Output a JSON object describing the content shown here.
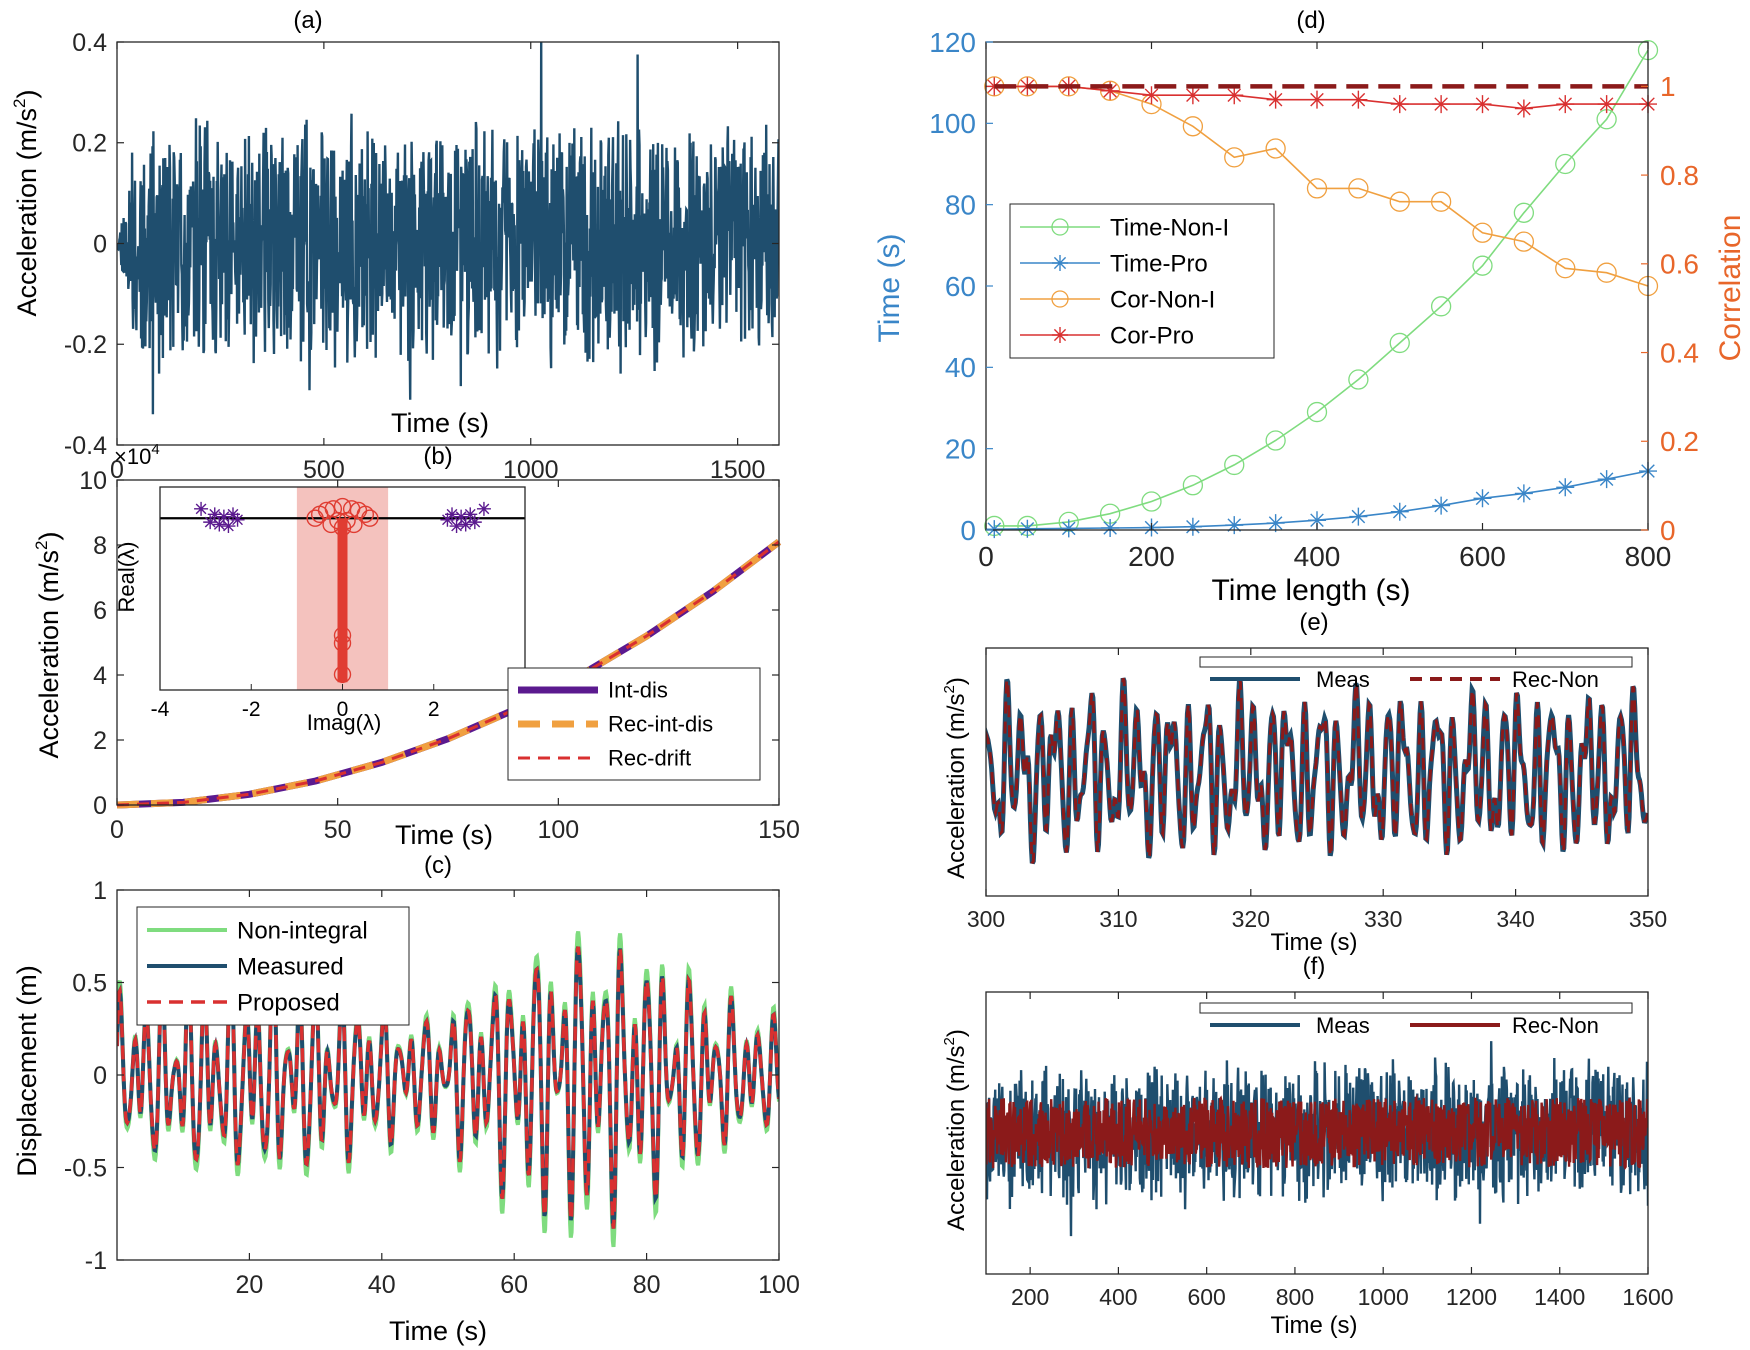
{
  "colors": {
    "navy": "#1f4e6e",
    "green": "#7fdc7f",
    "red": "#d93030",
    "darkred": "#8b1a1a",
    "purple": "#5b1a8f",
    "orange": "#f0a040",
    "blue": "#3a86c8",
    "orange_axis": "#e8662a",
    "inset_fill": "#f4c2be",
    "inset_red": "#e03c32",
    "black": "#000000"
  },
  "chart_data": [
    {
      "id": "a",
      "type": "line",
      "title": "(a)",
      "xlabel": "Time (s)",
      "ylabel": "Acceleration (m/s",
      "ylabel_sup": "2",
      "ylabel_close": ")",
      "xlim": [
        0,
        1600
      ],
      "ylim": [
        -0.4,
        0.4
      ],
      "xticks": [
        0,
        500,
        1000,
        1500
      ],
      "xtick_labels": [
        "0",
        "500",
        "1000",
        "1500"
      ],
      "yticks": [
        -0.4,
        -0.2,
        0,
        0.2,
        0.4
      ],
      "ytick_labels": [
        "-0.4",
        "-0.2",
        "0",
        "0.2",
        "0.4"
      ],
      "series": [
        {
          "name": "acceleration",
          "color": "navy",
          "kind": "noise",
          "x_range": [
            0,
            1600
          ],
          "points": 1400,
          "amplitude": 0.26,
          "ramp_end": 40,
          "seed": 11
        }
      ]
    },
    {
      "id": "b",
      "type": "line",
      "title": "(b)",
      "exponent_label": "×10",
      "exponent_sup": "4",
      "xlabel": "Time (s)",
      "ylabel": "Acceleration (m/s",
      "ylabel_sup": "2",
      "ylabel_close": ")",
      "xlim": [
        0,
        150
      ],
      "ylim": [
        0,
        10
      ],
      "xticks": [
        0,
        50,
        100,
        150
      ],
      "xtick_labels": [
        "0",
        "50",
        "100",
        "150"
      ],
      "yticks": [
        0,
        2,
        4,
        6,
        8,
        10
      ],
      "ytick_labels": [
        "0",
        "2",
        "4",
        "6",
        "8",
        "10"
      ],
      "series": [
        {
          "name": "Int-dis",
          "color": "purple",
          "style": "solid",
          "x": [
            0,
            15,
            30,
            45,
            60,
            75,
            90,
            105,
            120,
            135,
            150
          ],
          "y": [
            0,
            0.08,
            0.33,
            0.74,
            1.31,
            2.04,
            2.93,
            3.99,
            5.2,
            6.57,
            8.1
          ]
        },
        {
          "name": "Rec-int-dis",
          "color": "orange",
          "style": "dashed-thick",
          "x": [
            0,
            15,
            30,
            45,
            60,
            75,
            90,
            105,
            120,
            135,
            150
          ],
          "y": [
            0,
            0.08,
            0.33,
            0.74,
            1.31,
            2.04,
            2.93,
            3.99,
            5.2,
            6.57,
            8.1
          ]
        },
        {
          "name": "Rec-drift",
          "color": "red",
          "style": "dashed",
          "x": [
            0,
            15,
            30,
            45,
            60,
            75,
            90,
            105,
            120,
            135,
            150
          ],
          "y": [
            0,
            0.08,
            0.33,
            0.74,
            1.31,
            2.04,
            2.93,
            3.99,
            5.2,
            6.57,
            8.1
          ]
        }
      ],
      "legend": [
        "Int-dis",
        "Rec-int-dis",
        "Rec-drift"
      ],
      "inset": {
        "xlabel": "Imag(λ)",
        "ylabel": "Real(λ)",
        "xticks": [
          -4,
          -2,
          0,
          2,
          4
        ],
        "xtick_labels": [
          "-4",
          "-2",
          "0",
          "2",
          "4"
        ],
        "xlim": [
          -4,
          4
        ],
        "ylim": [
          -2.2,
          0.4
        ],
        "band": [
          -1,
          1
        ],
        "purple_points": [
          [
            -3.1,
            0.12
          ],
          [
            -2.9,
            -0.05
          ],
          [
            -2.8,
            0.05
          ],
          [
            -2.7,
            -0.08
          ],
          [
            -2.6,
            0.02
          ],
          [
            -2.5,
            -0.1
          ],
          [
            -2.4,
            0.05
          ],
          [
            -2.3,
            -0.02
          ],
          [
            3.1,
            0.12
          ],
          [
            2.9,
            -0.05
          ],
          [
            2.8,
            0.05
          ],
          [
            2.7,
            -0.08
          ],
          [
            2.6,
            0.02
          ],
          [
            2.5,
            -0.1
          ],
          [
            2.4,
            0.05
          ],
          [
            2.3,
            -0.02
          ]
        ],
        "red_circles": [
          [
            0,
            0.15
          ],
          [
            -0.2,
            0.12
          ],
          [
            0.2,
            0.12
          ],
          [
            -0.5,
            0.05
          ],
          [
            0.5,
            0.05
          ],
          [
            -0.35,
            0.1
          ],
          [
            0.35,
            0.1
          ],
          [
            -0.1,
            -0.03
          ],
          [
            0.1,
            -0.03
          ],
          [
            -0.25,
            -0.08
          ],
          [
            0.25,
            -0.08
          ],
          [
            0,
            -0.12
          ],
          [
            -0.6,
            0.0
          ],
          [
            0.6,
            0.0
          ],
          [
            0,
            -1.5
          ],
          [
            0,
            -1.6
          ],
          [
            0,
            -2.0
          ]
        ]
      }
    },
    {
      "id": "c",
      "type": "line",
      "title": "(c)",
      "xlabel": "Time (s)",
      "ylabel": "Displacement (m)",
      "xlim": [
        0,
        100
      ],
      "ylim": [
        -1,
        1
      ],
      "xticks": [
        20,
        40,
        60,
        80,
        100
      ],
      "xtick_labels": [
        "20",
        "40",
        "60",
        "80",
        "100"
      ],
      "yticks": [
        -1,
        -0.5,
        0,
        0.5,
        1
      ],
      "ytick_labels": [
        "-1",
        "-0.5",
        "0",
        "0.5",
        "1"
      ],
      "series": [
        {
          "name": "Non-integral",
          "color": "green",
          "style": "solid-thick",
          "kind": "osc",
          "scale": 1.12,
          "offset": 0.0
        },
        {
          "name": "Measured",
          "color": "navy",
          "style": "solid-thick",
          "kind": "osc",
          "scale": 1.0,
          "offset": 0.0
        },
        {
          "name": "Proposed",
          "color": "red",
          "style": "dashed",
          "kind": "osc",
          "scale": 1.0,
          "offset": 0.0
        }
      ],
      "legend": [
        "Non-integral",
        "Measured",
        "Proposed"
      ]
    },
    {
      "id": "d",
      "type": "line",
      "title": "(d)",
      "xlabel": "Time length (s)",
      "ylabel": "Time (s)",
      "y2label": "Correlation",
      "xlim": [
        0,
        800
      ],
      "ylim": [
        0,
        120
      ],
      "y2lim": [
        0,
        1.1
      ],
      "xticks": [
        0,
        200,
        400,
        600,
        800
      ],
      "xtick_labels": [
        "0",
        "200",
        "400",
        "600",
        "800"
      ],
      "yticks": [
        0,
        20,
        40,
        60,
        80,
        100,
        120
      ],
      "ytick_labels": [
        "0",
        "20",
        "40",
        "60",
        "80",
        "100",
        "120"
      ],
      "y2ticks": [
        0,
        0.2,
        0.4,
        0.6,
        0.8,
        1
      ],
      "y2tick_labels": [
        "0",
        "0.2",
        "0.4",
        "0.6",
        "0.8",
        "1"
      ],
      "x": [
        10,
        50,
        100,
        150,
        200,
        250,
        300,
        350,
        400,
        450,
        500,
        550,
        600,
        650,
        700,
        750,
        800
      ],
      "series": [
        {
          "name": "Time-Non-I",
          "color": "green",
          "marker": "circle",
          "axis": "left",
          "values": [
            1,
            1,
            2,
            4,
            7,
            11,
            16,
            22,
            29,
            37,
            46,
            55,
            65,
            78,
            90,
            101,
            118
          ]
        },
        {
          "name": "Time-Pro",
          "color": "blue",
          "marker": "star",
          "axis": "left",
          "values": [
            0.2,
            0.3,
            0.4,
            0.5,
            0.6,
            0.8,
            1.2,
            1.7,
            2.4,
            3.3,
            4.5,
            6,
            7.8,
            9,
            10.5,
            12.5,
            14.5
          ]
        },
        {
          "name": "Cor-Non-I",
          "color": "orange",
          "marker": "circle",
          "axis": "right",
          "values": [
            1.0,
            1.0,
            1.0,
            0.99,
            0.96,
            0.91,
            0.84,
            0.86,
            0.77,
            0.77,
            0.74,
            0.74,
            0.67,
            0.65,
            0.59,
            0.58,
            0.55
          ]
        },
        {
          "name": "Cor-Pro",
          "color": "red",
          "marker": "star",
          "axis": "right",
          "values": [
            1.0,
            1.0,
            1.0,
            0.99,
            0.98,
            0.98,
            0.98,
            0.97,
            0.97,
            0.97,
            0.96,
            0.96,
            0.96,
            0.95,
            0.96,
            0.96,
            0.96
          ]
        },
        {
          "name": "reference",
          "color": "darkred",
          "style": "dashed",
          "axis": "right",
          "values": [
            1.0,
            1.0,
            1.0,
            1.0,
            1.0,
            1.0,
            1.0,
            1.0,
            1.0,
            1.0,
            1.0,
            1.0,
            1.0,
            1.0,
            1.0,
            1.0,
            1.0
          ]
        }
      ],
      "legend": [
        "Time-Non-I",
        "Time-Pro",
        "Cor-Non-I",
        "Cor-Pro"
      ]
    },
    {
      "id": "e",
      "type": "line",
      "title": "(e)",
      "xlabel": "Time (s)",
      "ylabel": "Acceleration (m/s",
      "ylabel_sup": "2",
      "ylabel_close": ")",
      "xlim": [
        300,
        350
      ],
      "ylim": [
        -1,
        1
      ],
      "xticks": [
        300,
        310,
        320,
        330,
        340,
        350
      ],
      "xtick_labels": [
        "300",
        "310",
        "320",
        "330",
        "340",
        "350"
      ],
      "series": [
        {
          "name": "Meas",
          "color": "navy",
          "style": "solid-thick"
        },
        {
          "name": "Rec-Non",
          "color": "darkred",
          "style": "dashed"
        }
      ],
      "legend": [
        "Meas",
        "Rec-Non"
      ]
    },
    {
      "id": "f",
      "type": "line",
      "title": "(f)",
      "xlabel": "Time (s)",
      "ylabel": "Acceleration (m/s",
      "ylabel_sup": "2",
      "ylabel_close": ")",
      "xlim": [
        100,
        1600
      ],
      "ylim": [
        -1,
        1
      ],
      "xticks": [
        200,
        400,
        600,
        800,
        1000,
        1200,
        1400,
        1600
      ],
      "xtick_labels": [
        "200",
        "400",
        "600",
        "800",
        "1000",
        "1200",
        "1400",
        "1600"
      ],
      "series": [
        {
          "name": "Meas",
          "color": "navy",
          "style": "solid-thick",
          "amplitude": 0.55
        },
        {
          "name": "Rec-Non",
          "color": "darkred",
          "style": "solid-thick",
          "amplitude": 0.25
        }
      ],
      "legend": [
        "Meas",
        "Rec-Non"
      ]
    }
  ]
}
